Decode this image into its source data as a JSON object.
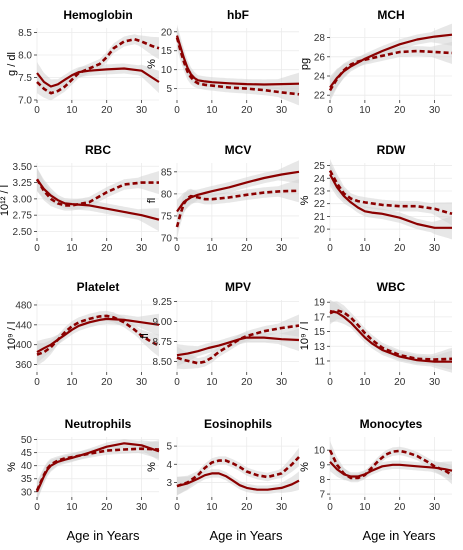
{
  "figure": {
    "x_axis_title": "Age in Years"
  },
  "colors": {
    "series": "#8b0000",
    "band": "#d3d3d3",
    "panel": "#ffffff",
    "grid": "#ebebeb"
  },
  "chart_data": [
    {
      "type": "line",
      "title": "Hemoglobin",
      "ylabel": "g / dl",
      "xlim": [
        0,
        35
      ],
      "ylim": [
        7.0,
        8.6
      ],
      "x_ticks": [
        0,
        10,
        20,
        30
      ],
      "y_ticks": [
        7.0,
        7.5,
        8.0,
        8.5
      ],
      "y_tick_labels": [
        "7.0",
        "7.5",
        "8.0",
        "8.5"
      ],
      "series": [
        {
          "style": "solid",
          "x": [
            0,
            2,
            4,
            6,
            8,
            10,
            12,
            15,
            20,
            25,
            30,
            33,
            35
          ],
          "y": [
            7.6,
            7.4,
            7.3,
            7.35,
            7.45,
            7.55,
            7.62,
            7.65,
            7.68,
            7.7,
            7.65,
            7.5,
            7.4
          ]
        },
        {
          "style": "dashed",
          "x": [
            0,
            2,
            4,
            6,
            8,
            10,
            12,
            15,
            18,
            20,
            22,
            25,
            28,
            30,
            33,
            35
          ],
          "y": [
            7.4,
            7.25,
            7.15,
            7.2,
            7.3,
            7.45,
            7.6,
            7.7,
            7.8,
            7.95,
            8.15,
            8.3,
            8.35,
            8.3,
            8.2,
            8.15
          ]
        }
      ]
    },
    {
      "type": "line",
      "title": "hbF",
      "ylabel": "%",
      "xlim": [
        0,
        35
      ],
      "ylim": [
        2,
        21
      ],
      "x_ticks": [
        0,
        10,
        20,
        30
      ],
      "y_ticks": [
        5,
        10,
        15,
        20
      ],
      "y_tick_labels": [
        "5",
        "10",
        "15",
        "20"
      ],
      "series": [
        {
          "style": "solid",
          "x": [
            0,
            1,
            2,
            3,
            4,
            5,
            6,
            8,
            10,
            15,
            20,
            25,
            30,
            35
          ],
          "y": [
            19,
            16,
            13,
            10.5,
            8.8,
            7.8,
            7.2,
            6.9,
            6.7,
            6.4,
            6.2,
            6.1,
            6.2,
            6.3
          ]
        },
        {
          "style": "dashed",
          "x": [
            0,
            1,
            2,
            3,
            4,
            5,
            6,
            8,
            10,
            15,
            20,
            25,
            30,
            35
          ],
          "y": [
            18.5,
            15,
            12,
            9.5,
            8,
            7,
            6.4,
            6,
            5.8,
            5.3,
            5,
            4.6,
            4,
            3.5
          ]
        }
      ]
    },
    {
      "type": "line",
      "title": "MCH",
      "ylabel": "pg",
      "xlim": [
        0,
        35
      ],
      "ylim": [
        21.5,
        29
      ],
      "x_ticks": [
        0,
        10,
        20,
        30
      ],
      "y_ticks": [
        22,
        24,
        26,
        28
      ],
      "y_tick_labels": [
        "22",
        "24",
        "26",
        "28"
      ],
      "series": [
        {
          "style": "solid",
          "x": [
            0,
            2,
            4,
            6,
            8,
            10,
            15,
            20,
            25,
            30,
            35
          ],
          "y": [
            22.8,
            23.8,
            24.5,
            25.0,
            25.4,
            25.8,
            26.6,
            27.3,
            27.8,
            28.1,
            28.3
          ]
        },
        {
          "style": "dashed",
          "x": [
            0,
            2,
            4,
            6,
            8,
            10,
            15,
            20,
            25,
            30,
            35
          ],
          "y": [
            22.5,
            23.7,
            24.6,
            25.2,
            25.5,
            25.7,
            26.1,
            26.5,
            26.6,
            26.5,
            26.4
          ]
        }
      ]
    },
    {
      "type": "line",
      "title": "RBC",
      "ylabel": "10¹² / l",
      "xlim": [
        0,
        35
      ],
      "ylim": [
        2.4,
        3.55
      ],
      "x_ticks": [
        0,
        10,
        20,
        30
      ],
      "y_ticks": [
        2.5,
        2.75,
        3.0,
        3.25,
        3.5
      ],
      "y_tick_labels": [
        "2.50",
        "2.75",
        "3.00",
        "3.25",
        "3.50"
      ],
      "series": [
        {
          "style": "solid",
          "x": [
            0,
            2,
            4,
            6,
            8,
            10,
            15,
            20,
            25,
            30,
            35
          ],
          "y": [
            3.3,
            3.15,
            3.05,
            2.98,
            2.93,
            2.92,
            2.9,
            2.85,
            2.8,
            2.75,
            2.68
          ]
        },
        {
          "style": "dashed",
          "x": [
            0,
            2,
            4,
            6,
            8,
            10,
            15,
            20,
            25,
            30,
            35
          ],
          "y": [
            3.3,
            3.12,
            3.0,
            2.93,
            2.9,
            2.9,
            2.95,
            3.1,
            3.22,
            3.25,
            3.25
          ]
        }
      ]
    },
    {
      "type": "line",
      "title": "MCV",
      "ylabel": "fl",
      "xlim": [
        0,
        35
      ],
      "ylim": [
        70,
        87
      ],
      "x_ticks": [
        0,
        10,
        20,
        30
      ],
      "y_ticks": [
        70,
        75,
        80,
        85
      ],
      "y_tick_labels": [
        "70",
        "75",
        "80",
        "85"
      ],
      "series": [
        {
          "style": "solid",
          "x": [
            0,
            2,
            4,
            6,
            8,
            10,
            15,
            20,
            25,
            30,
            35
          ],
          "y": [
            76,
            78.2,
            79.2,
            79.8,
            80.2,
            80.6,
            81.5,
            82.6,
            83.6,
            84.4,
            85
          ]
        },
        {
          "style": "dashed",
          "x": [
            0,
            1,
            2,
            3,
            4,
            6,
            8,
            10,
            15,
            20,
            25,
            30,
            35
          ],
          "y": [
            72.5,
            75.5,
            77.8,
            79,
            79.5,
            79.2,
            78.8,
            78.8,
            79.2,
            79.8,
            80.3,
            80.6,
            80.7
          ]
        }
      ]
    },
    {
      "type": "line",
      "title": "RDW",
      "ylabel": "%",
      "xlim": [
        0,
        35
      ],
      "ylim": [
        19.3,
        25.2
      ],
      "x_ticks": [
        0,
        10,
        20,
        30
      ],
      "y_ticks": [
        20,
        21,
        22,
        23,
        24,
        25
      ],
      "y_tick_labels": [
        "20",
        "21",
        "22",
        "23",
        "24",
        "25"
      ],
      "series": [
        {
          "style": "solid",
          "x": [
            0,
            2,
            4,
            6,
            8,
            10,
            12,
            15,
            20,
            25,
            30,
            35
          ],
          "y": [
            24.3,
            23.3,
            22.6,
            22.1,
            21.7,
            21.4,
            21.3,
            21.2,
            20.9,
            20.4,
            20.1,
            20.1
          ]
        },
        {
          "style": "dashed",
          "x": [
            0,
            2,
            4,
            6,
            8,
            10,
            15,
            20,
            25,
            30,
            35
          ],
          "y": [
            24.6,
            23.6,
            22.8,
            22.4,
            22.2,
            22.1,
            21.9,
            21.8,
            21.8,
            21.6,
            21.2
          ]
        }
      ]
    },
    {
      "type": "line",
      "title": "Platelet",
      "ylabel": "10⁹ / l",
      "xlim": [
        0,
        35
      ],
      "ylim": [
        345,
        490
      ],
      "x_ticks": [
        0,
        10,
        20,
        30
      ],
      "y_ticks": [
        360,
        400,
        440,
        480
      ],
      "y_tick_labels": [
        "360",
        "400",
        "440",
        "480"
      ],
      "series": [
        {
          "style": "solid",
          "x": [
            0,
            2,
            4,
            6,
            8,
            10,
            12,
            15,
            18,
            20,
            25,
            30,
            35
          ],
          "y": [
            385,
            393,
            400,
            410,
            420,
            430,
            438,
            445,
            450,
            452,
            450,
            445,
            440
          ]
        },
        {
          "style": "dashed",
          "x": [
            0,
            2,
            4,
            6,
            8,
            10,
            12,
            15,
            18,
            20,
            22,
            25,
            28,
            30,
            33,
            35
          ],
          "y": [
            380,
            385,
            395,
            410,
            425,
            437,
            445,
            452,
            457,
            458,
            455,
            445,
            430,
            418,
            405,
            398
          ]
        }
      ]
    },
    {
      "type": "line",
      "title": "MPV",
      "ylabel": "fl",
      "xlim": [
        0,
        35
      ],
      "ylim": [
        8.37,
        9.27
      ],
      "x_ticks": [
        0,
        10,
        20,
        30
      ],
      "y_ticks": [
        8.5,
        8.75,
        9.0,
        9.25
      ],
      "y_tick_labels": [
        "8.50",
        "8.75",
        "9.00",
        "9.25"
      ],
      "series": [
        {
          "style": "solid",
          "x": [
            0,
            3,
            6,
            9,
            12,
            15,
            18,
            20,
            25,
            30,
            35
          ],
          "y": [
            8.58,
            8.6,
            8.63,
            8.67,
            8.7,
            8.74,
            8.78,
            8.8,
            8.8,
            8.78,
            8.77
          ]
        },
        {
          "style": "dashed",
          "x": [
            0,
            2,
            4,
            6,
            8,
            10,
            12,
            15,
            18,
            20,
            25,
            30,
            35
          ],
          "y": [
            8.55,
            8.52,
            8.5,
            8.48,
            8.5,
            8.55,
            8.62,
            8.7,
            8.78,
            8.82,
            8.88,
            8.92,
            8.95
          ]
        }
      ]
    },
    {
      "type": "line",
      "title": "WBC",
      "ylabel": "10⁹ / l",
      "xlim": [
        0,
        35
      ],
      "ylim": [
        9.5,
        19.3
      ],
      "x_ticks": [
        0,
        10,
        20,
        30
      ],
      "y_ticks": [
        11,
        13,
        15,
        17,
        19
      ],
      "y_tick_labels": [
        "11",
        "13",
        "15",
        "17",
        "19"
      ],
      "series": [
        {
          "style": "solid",
          "x": [
            0,
            2,
            4,
            6,
            8,
            10,
            12,
            15,
            20,
            25,
            30,
            35
          ],
          "y": [
            17.8,
            17.6,
            17.0,
            16.2,
            15.2,
            14.2,
            13.4,
            12.5,
            11.6,
            11.1,
            10.9,
            10.9
          ]
        },
        {
          "style": "dashed",
          "x": [
            0,
            2,
            4,
            6,
            8,
            10,
            12,
            15,
            20,
            25,
            30,
            35
          ],
          "y": [
            17.5,
            17.9,
            17.6,
            16.9,
            15.9,
            14.8,
            13.9,
            12.8,
            11.8,
            11.3,
            11.2,
            11.3
          ]
        }
      ]
    },
    {
      "type": "line",
      "title": "Neutrophils",
      "ylabel": "%",
      "xlim": [
        0,
        35
      ],
      "ylim": [
        28,
        51
      ],
      "x_ticks": [
        0,
        10,
        20,
        30
      ],
      "y_ticks": [
        30,
        35,
        40,
        45,
        50
      ],
      "y_tick_labels": [
        "30",
        "35",
        "40",
        "45",
        "50"
      ],
      "series": [
        {
          "style": "solid",
          "x": [
            0,
            1,
            2,
            3,
            4,
            6,
            8,
            10,
            15,
            20,
            25,
            30,
            35
          ],
          "y": [
            30,
            33,
            36,
            38.5,
            40,
            41.5,
            42.3,
            43,
            45,
            47.3,
            48.6,
            47.8,
            45.5
          ]
        },
        {
          "style": "dashed",
          "x": [
            0,
            1,
            2,
            3,
            4,
            6,
            8,
            10,
            15,
            20,
            25,
            30,
            35
          ],
          "y": [
            30.5,
            33.5,
            36.5,
            39,
            40.5,
            42,
            42.8,
            43.3,
            44.6,
            45.8,
            46.2,
            46.5,
            46.2
          ]
        }
      ]
    },
    {
      "type": "line",
      "title": "Eosinophils",
      "ylabel": "%",
      "xlim": [
        0,
        35
      ],
      "ylim": [
        2.2,
        5.5
      ],
      "x_ticks": [
        0,
        10,
        20,
        30
      ],
      "y_ticks": [
        3,
        4,
        5
      ],
      "y_tick_labels": [
        "3",
        "4",
        "5"
      ],
      "series": [
        {
          "style": "solid",
          "x": [
            0,
            3,
            6,
            8,
            10,
            12,
            14,
            16,
            18,
            20,
            23,
            26,
            30,
            33,
            35
          ],
          "y": [
            2.8,
            2.95,
            3.2,
            3.4,
            3.5,
            3.5,
            3.35,
            3.1,
            2.85,
            2.7,
            2.6,
            2.6,
            2.7,
            2.9,
            3.1
          ]
        },
        {
          "style": "dashed",
          "x": [
            0,
            3,
            6,
            8,
            10,
            12,
            14,
            16,
            18,
            20,
            23,
            26,
            30,
            33,
            35
          ],
          "y": [
            2.8,
            3.0,
            3.4,
            3.8,
            4.1,
            4.2,
            4.2,
            4.05,
            3.85,
            3.6,
            3.4,
            3.3,
            3.5,
            4.0,
            4.4
          ]
        }
      ]
    },
    {
      "type": "line",
      "title": "Monocytes",
      "ylabel": "%",
      "xlim": [
        0,
        35
      ],
      "ylim": [
        6.8,
        10.9
      ],
      "x_ticks": [
        0,
        10,
        20,
        30
      ],
      "y_ticks": [
        7,
        8,
        9,
        10
      ],
      "y_tick_labels": [
        "7",
        "8",
        "9",
        "10"
      ],
      "series": [
        {
          "style": "solid",
          "x": [
            0,
            2,
            4,
            6,
            8,
            10,
            12,
            15,
            18,
            20,
            25,
            30,
            33,
            35
          ],
          "y": [
            9.2,
            8.7,
            8.35,
            8.2,
            8.2,
            8.35,
            8.6,
            8.9,
            9.0,
            9.0,
            8.9,
            8.8,
            8.7,
            8.6
          ]
        },
        {
          "style": "dashed",
          "x": [
            0,
            2,
            4,
            6,
            8,
            10,
            12,
            14,
            16,
            18,
            20,
            22,
            25,
            28,
            30,
            33,
            35
          ],
          "y": [
            10.0,
            9.0,
            8.4,
            8.1,
            8.1,
            8.3,
            8.8,
            9.3,
            9.7,
            9.9,
            9.95,
            9.85,
            9.6,
            9.2,
            8.9,
            8.6,
            8.3
          ]
        }
      ]
    }
  ]
}
